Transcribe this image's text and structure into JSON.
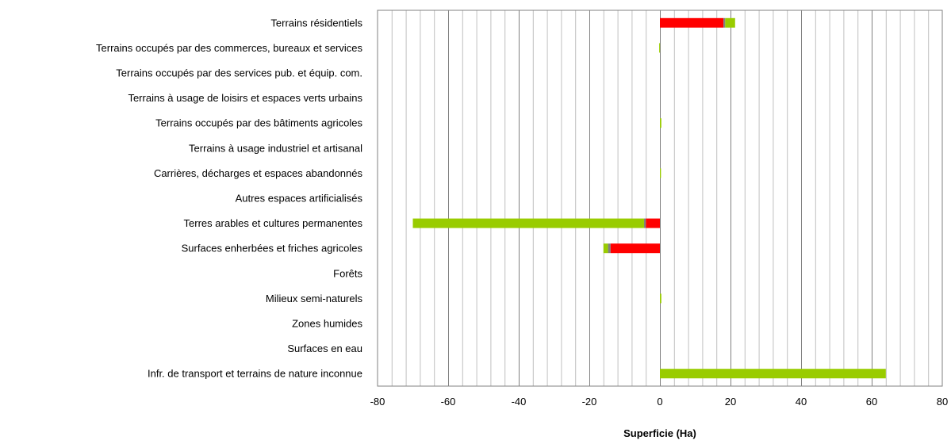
{
  "chart_data": {
    "type": "bar",
    "orientation": "horizontal",
    "stacked": true,
    "categories": [
      "Terrains résidentiels",
      "Terrains occupés par des commerces, bureaux et services",
      "Terrains occupés par des services pub. et équip. com.",
      "Terrains à usage de loisirs et espaces verts urbains",
      "Terrains occupés par des bâtiments agricoles",
      "Terrains à usage industriel et artisanal",
      "Carrières, décharges et espaces abandonnés",
      "Autres espaces artificialisés",
      "Terres arables et cultures permanentes",
      "Surfaces enherbées et friches agricoles",
      "Forêts",
      "Milieux semi-naturels",
      "Zones humides",
      "Surfaces en eau",
      "Infr. de transport et terrains de nature inconnue"
    ],
    "series": [
      {
        "color": "#ff0000",
        "values": [
          18,
          0,
          0,
          0,
          0,
          0,
          0,
          0,
          -4,
          -14,
          0,
          0,
          0,
          0,
          0
        ]
      },
      {
        "color": "#808080",
        "values": [
          0.5,
          0,
          0,
          0,
          0,
          0,
          0,
          0,
          -0.5,
          -0.7,
          0,
          0,
          0,
          0,
          0
        ]
      },
      {
        "color": "#99cc00",
        "values": [
          2.8,
          -0.2,
          0,
          0,
          0.4,
          0,
          0.3,
          0,
          -65.5,
          -1.3,
          0,
          0.4,
          0,
          0,
          64
        ]
      }
    ],
    "xlabel": "Superficie (Ha)",
    "ylabel": "",
    "xlim": [
      -80,
      80
    ],
    "x_ticks": [
      -80,
      -60,
      -40,
      -20,
      0,
      20,
      40,
      60,
      80
    ],
    "minor_gridlines_step": 4,
    "grid": true,
    "legend": "none"
  }
}
